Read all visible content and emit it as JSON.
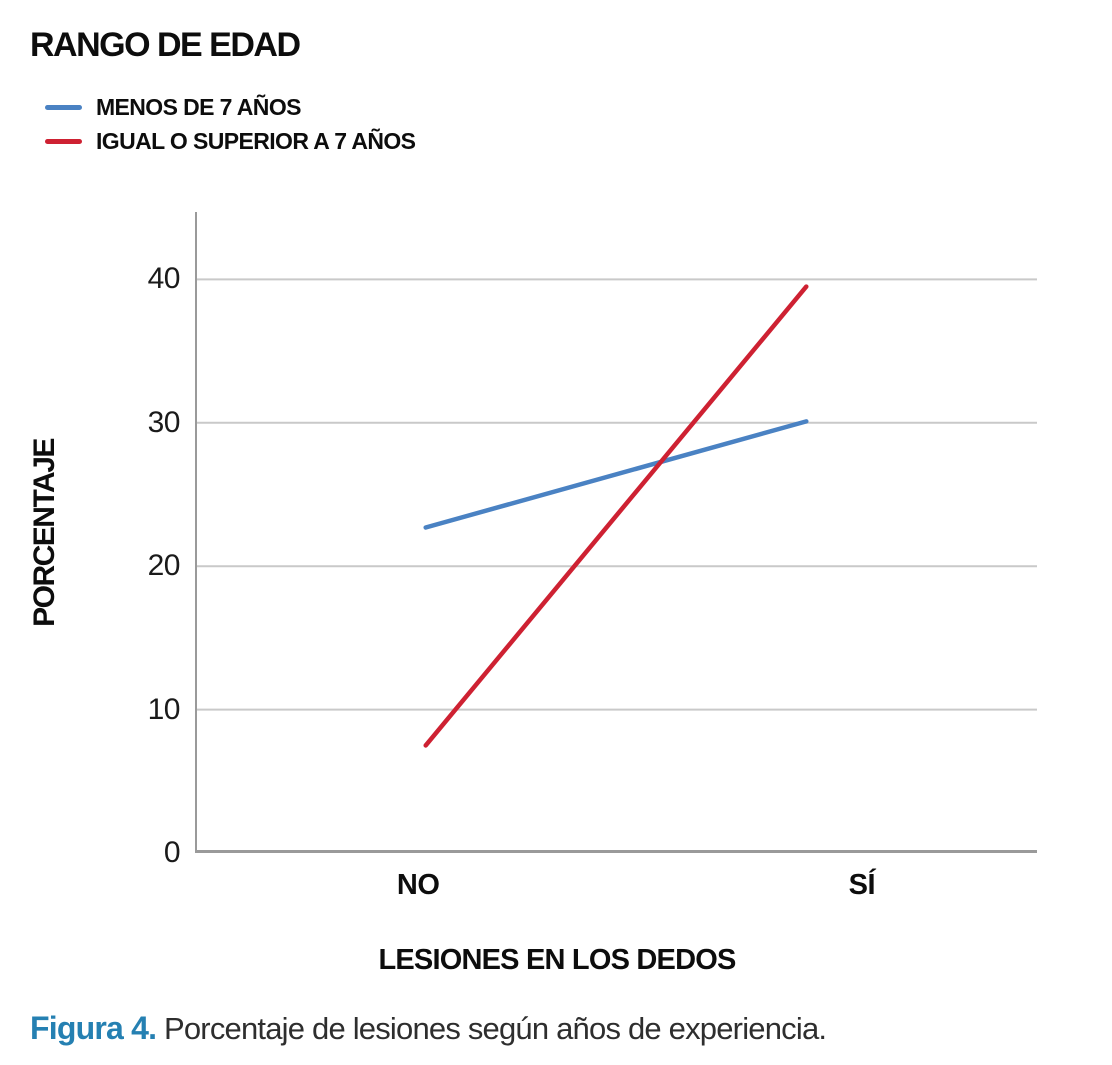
{
  "legend": {
    "title": "RANGO DE EDAD",
    "items": [
      {
        "label": "MENOS DE 7 AÑOS",
        "color": "#4a82c3"
      },
      {
        "label": "IGUAL O SUPERIOR A 7 AÑOS",
        "color": "#ce2132"
      }
    ]
  },
  "chart_data": {
    "type": "line",
    "title": "RANGO DE EDAD",
    "categories": [
      "NO",
      "SÍ"
    ],
    "series": [
      {
        "name": "MENOS DE 7 AÑOS",
        "color": "#4a82c3",
        "values": [
          22.7,
          30.1
        ]
      },
      {
        "name": "IGUAL O SUPERIOR A 7 AÑOS",
        "color": "#ce2132",
        "values": [
          7.5,
          39.5
        ]
      }
    ],
    "xlabel": "LESIONES EN LOS DEDOS",
    "ylabel": "PORCENTAJE",
    "ylim": [
      0,
      44.7
    ],
    "yticks": [
      0,
      10,
      20,
      30,
      40
    ],
    "grid": "horizontal",
    "legend_position": "top-left",
    "gridline_color": "#c9c9c9",
    "axis_color": "#9a9a9a",
    "x_positions": [
      0.274,
      0.726
    ],
    "label_positions": [
      0.265,
      0.792
    ]
  },
  "caption": {
    "label": "Figura 4.",
    "text": " Porcentaje de lesiones según años de experiencia.",
    "label_color": "#2580b2"
  }
}
